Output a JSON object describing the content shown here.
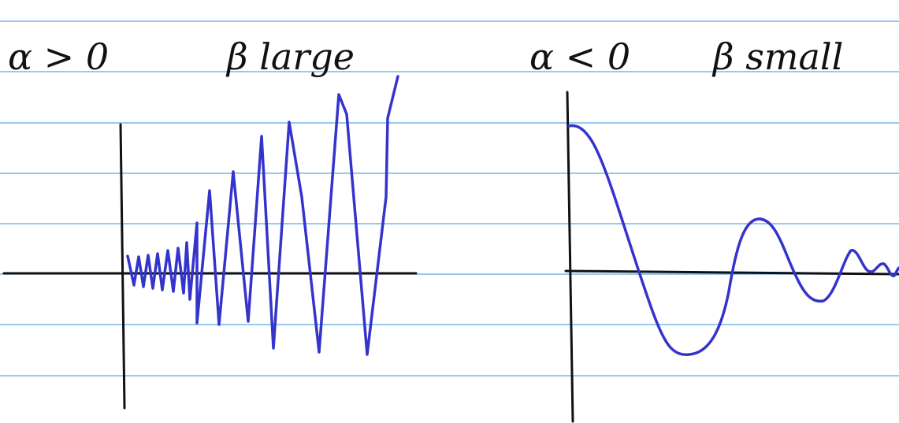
{
  "left": {
    "alpha": "α > 0",
    "beta": "β large"
  },
  "right": {
    "alpha": "α < 0",
    "beta": "β small"
  }
}
